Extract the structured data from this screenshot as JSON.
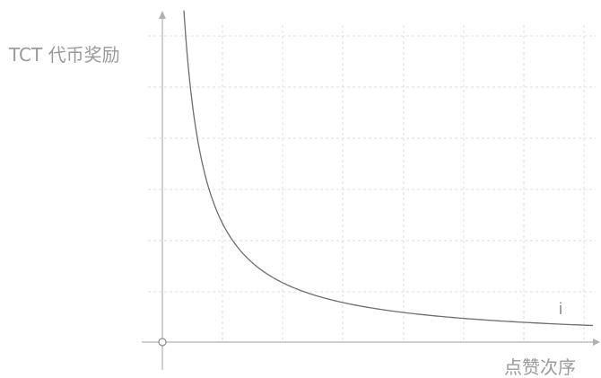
{
  "chart_data": {
    "type": "line",
    "title": "",
    "ylabel": "TCT 代币奖励",
    "xlabel": "点赞次序",
    "x_tick_labels": [],
    "y_tick_labels": [],
    "grid": true,
    "xlim": [
      0,
      10
    ],
    "ylim": [
      0,
      6
    ],
    "series": [
      {
        "x": [
          0.5,
          0.6,
          0.7,
          0.8,
          1.0,
          1.2,
          1.5,
          1.8,
          2.0,
          2.5,
          3.0,
          3.5,
          4.0,
          5.0,
          6.0,
          7.0,
          8.0,
          9.0,
          10.0
        ],
        "y": [
          6.48,
          5.4,
          4.63,
          4.05,
          3.24,
          2.7,
          2.16,
          1.8,
          1.62,
          1.3,
          1.08,
          0.93,
          0.81,
          0.65,
          0.54,
          0.46,
          0.41,
          0.36,
          0.32
        ]
      }
    ],
    "point_label": "i",
    "colors": {
      "curve": "#6e6e6e",
      "axis": "#b0b0b0",
      "grid": "#dcdcdc",
      "text": "#9a9a9a"
    }
  }
}
